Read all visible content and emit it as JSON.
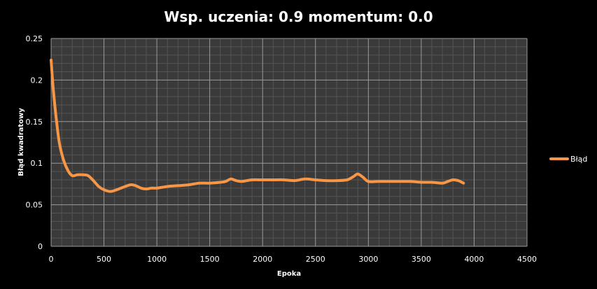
{
  "chart_data": {
    "type": "line",
    "title": "Wsp. uczenia: 0.9 momentum: 0.0",
    "xlabel": "Epoka",
    "ylabel": "Błąd kwadratowy",
    "xlim": [
      0,
      4500
    ],
    "ylim": [
      0,
      0.25
    ],
    "x_ticks": [
      0,
      500,
      1000,
      1500,
      2000,
      2500,
      3000,
      3500,
      4000,
      4500
    ],
    "y_ticks": [
      0,
      0.05,
      0.1,
      0.15,
      0.2,
      0.25
    ],
    "x_tick_labels": [
      "0",
      "500",
      "1000",
      "1500",
      "2000",
      "2500",
      "3000",
      "3500",
      "4000",
      "4500"
    ],
    "y_tick_labels": [
      "0",
      "0.05",
      "0.1",
      "0.15",
      "0.2",
      "0.25"
    ],
    "grid": true,
    "legend_position": "right",
    "series": [
      {
        "name": "Błąd",
        "color": "#f79646",
        "x": [
          0,
          20,
          50,
          80,
          120,
          160,
          200,
          250,
          300,
          350,
          400,
          450,
          500,
          560,
          620,
          680,
          750,
          800,
          850,
          900,
          950,
          1000,
          1100,
          1200,
          1300,
          1400,
          1500,
          1600,
          1650,
          1700,
          1750,
          1800,
          1850,
          1900,
          2000,
          2100,
          2200,
          2300,
          2400,
          2500,
          2600,
          2700,
          2800,
          2860,
          2900,
          2950,
          3000,
          3100,
          3200,
          3300,
          3400,
          3500,
          3600,
          3700,
          3750,
          3800,
          3850,
          3900
        ],
        "values": [
          0.224,
          0.19,
          0.152,
          0.123,
          0.103,
          0.091,
          0.085,
          0.086,
          0.086,
          0.085,
          0.079,
          0.072,
          0.068,
          0.066,
          0.068,
          0.071,
          0.074,
          0.073,
          0.07,
          0.069,
          0.07,
          0.07,
          0.072,
          0.073,
          0.074,
          0.076,
          0.076,
          0.077,
          0.078,
          0.081,
          0.079,
          0.078,
          0.079,
          0.08,
          0.08,
          0.08,
          0.08,
          0.079,
          0.081,
          0.08,
          0.079,
          0.079,
          0.08,
          0.084,
          0.087,
          0.083,
          0.078,
          0.078,
          0.078,
          0.078,
          0.078,
          0.077,
          0.077,
          0.076,
          0.078,
          0.08,
          0.079,
          0.076
        ]
      }
    ]
  }
}
